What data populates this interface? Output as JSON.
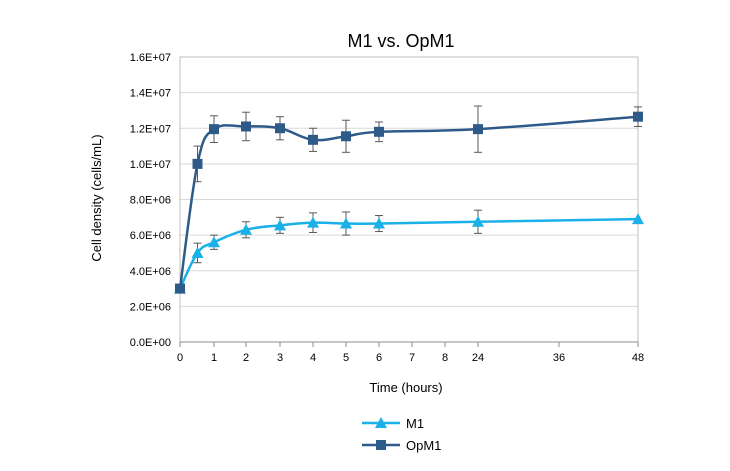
{
  "chart_data": {
    "type": "line",
    "title": "M1 vs. OpM1",
    "xlabel": "Time (hours)",
    "ylabel": "Cell density (cells/mL)",
    "x_tick_labels": [
      "0",
      "1",
      "2",
      "3",
      "4",
      "5",
      "6",
      "7",
      "8",
      "24",
      "36",
      "48"
    ],
    "y_tick_labels": [
      "0.0E+00",
      "2.0E+06",
      "4.0E+06",
      "6.0E+06",
      "8.0E+06",
      "1.0E+07",
      "1.2E+07",
      "1.4E+07",
      "1.6E+07"
    ],
    "ylim": [
      0,
      16000000
    ],
    "legend_position": "bottom",
    "series": [
      {
        "name": "M1",
        "color": "#1ab0e8",
        "marker": "triangle",
        "points": [
          {
            "x": 0,
            "y": 3000000,
            "err": 0
          },
          {
            "x": 0.5,
            "y": 5000000,
            "err": 550000
          },
          {
            "x": 1,
            "y": 5600000,
            "err": 400000
          },
          {
            "x": 2,
            "y": 6300000,
            "err": 450000
          },
          {
            "x": 3,
            "y": 6550000,
            "err": 450000
          },
          {
            "x": 4,
            "y": 6700000,
            "err": 550000
          },
          {
            "x": 5,
            "y": 6650000,
            "err": 650000
          },
          {
            "x": 6,
            "y": 6650000,
            "err": 450000
          },
          {
            "x": 24,
            "y": 6750000,
            "err": 650000
          },
          {
            "x": 48,
            "y": 6900000,
            "err": 0
          }
        ]
      },
      {
        "name": "OpM1",
        "color": "#2e5a8a",
        "marker": "square",
        "points": [
          {
            "x": 0,
            "y": 3000000,
            "err": 0
          },
          {
            "x": 0.5,
            "y": 10000000,
            "err": 1000000
          },
          {
            "x": 1,
            "y": 11950000,
            "err": 750000
          },
          {
            "x": 2,
            "y": 12100000,
            "err": 800000
          },
          {
            "x": 3,
            "y": 12000000,
            "err": 650000
          },
          {
            "x": 4,
            "y": 11350000,
            "err": 650000
          },
          {
            "x": 5,
            "y": 11550000,
            "err": 900000
          },
          {
            "x": 6,
            "y": 11800000,
            "err": 550000
          },
          {
            "x": 24,
            "y": 11950000,
            "err": 1300000
          },
          {
            "x": 48,
            "y": 12650000,
            "err": 550000
          }
        ]
      }
    ]
  }
}
